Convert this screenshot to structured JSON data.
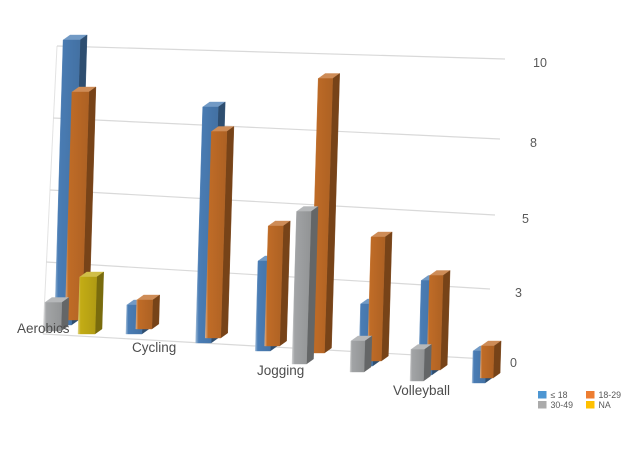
{
  "chart_data": {
    "type": "bar",
    "projection": "3d-perspective",
    "title": "",
    "categories": [
      "Aerobics",
      "",
      "Cycling",
      "",
      "Jogging",
      "",
      "Volleyball",
      ""
    ],
    "series": [
      {
        "name": "≤ 18",
        "color": "#4A7DB5",
        "values": [
          10,
          1,
          8,
          3,
          0,
          2,
          3,
          1
        ]
      },
      {
        "name": "18-29",
        "color": "#C06C27",
        "values": [
          8,
          1,
          7,
          4,
          9,
          4,
          3,
          1
        ]
      },
      {
        "name": "30-49",
        "color": "#A2A4A6",
        "values": [
          1,
          0,
          0,
          0,
          5,
          1,
          1,
          0
        ]
      },
      {
        "name": "NA",
        "color": "#C3AC15",
        "values": [
          2,
          0,
          0,
          0,
          0,
          0,
          0,
          0
        ]
      }
    ],
    "ylim": [
      0,
      10
    ],
    "yticks": [
      {
        "value": 0,
        "label": "0"
      },
      {
        "value": 2.5,
        "label": "3"
      },
      {
        "value": 5,
        "label": "5"
      },
      {
        "value": 7.5,
        "label": "8"
      },
      {
        "value": 10,
        "label": "10"
      }
    ],
    "grid": true,
    "gridline_color": "#D9D9D9",
    "axis_text_color": "#595959",
    "category_text_color": "#4D4D4D",
    "legend_position": "bottom-right"
  },
  "legend": {
    "items": [
      {
        "label": "≤ 18",
        "color": "#4D96D2"
      },
      {
        "label": "18-29",
        "color": "#ED7D31"
      },
      {
        "label": "30-49",
        "color": "#ABABAB"
      },
      {
        "label": "NA",
        "color": "#FFC000"
      }
    ]
  }
}
